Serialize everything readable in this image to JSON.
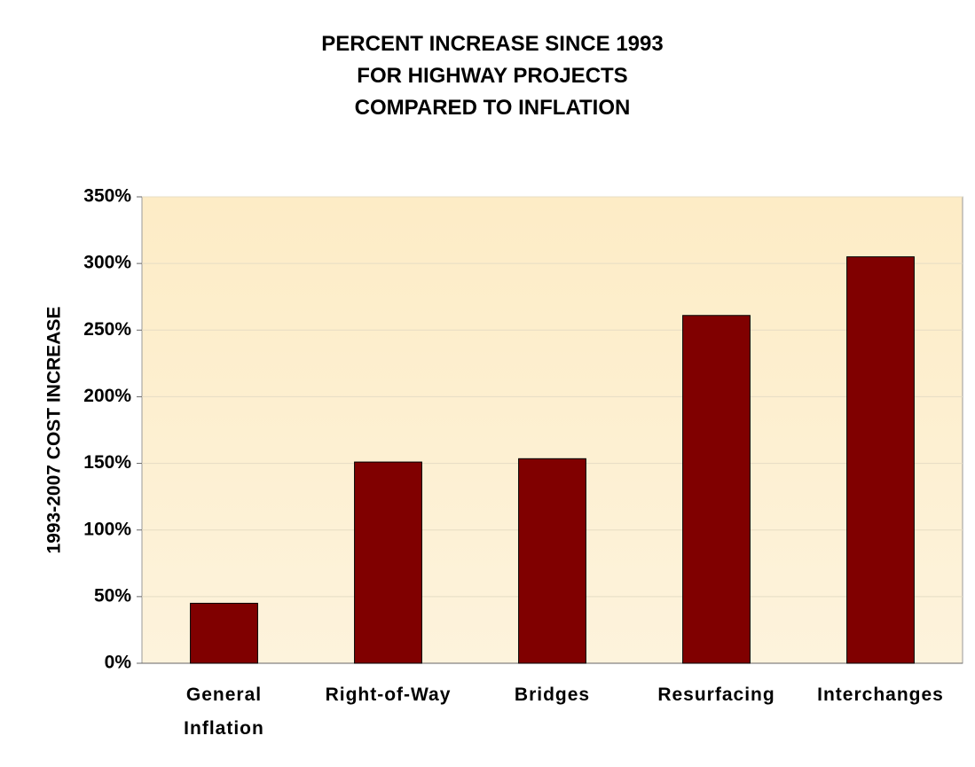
{
  "chart_data": {
    "type": "bar",
    "title": "PERCENT INCREASE SINCE 1993\nFOR HIGHWAY PROJECTS\nCOMPARED TO INFLATION",
    "y_label": "1993-2007 COST INCREASE",
    "categories": [
      "General\nInflation",
      "Right-of-Way",
      "Bridges",
      "Resurfacing",
      "Interchanges"
    ],
    "values": [
      45,
      151,
      153.5,
      261,
      305
    ],
    "color": "#800000",
    "ylim": [
      0,
      350
    ],
    "yticks": [
      {
        "value": 0,
        "label": "0%"
      },
      {
        "value": 50,
        "label": "50%"
      },
      {
        "value": 100,
        "label": "100%"
      },
      {
        "value": 150,
        "label": "150%"
      },
      {
        "value": 200,
        "label": "200%"
      },
      {
        "value": 250,
        "label": "250%"
      },
      {
        "value": 300,
        "label": "300%"
      },
      {
        "value": 350,
        "label": "350%"
      }
    ],
    "grid": true
  }
}
